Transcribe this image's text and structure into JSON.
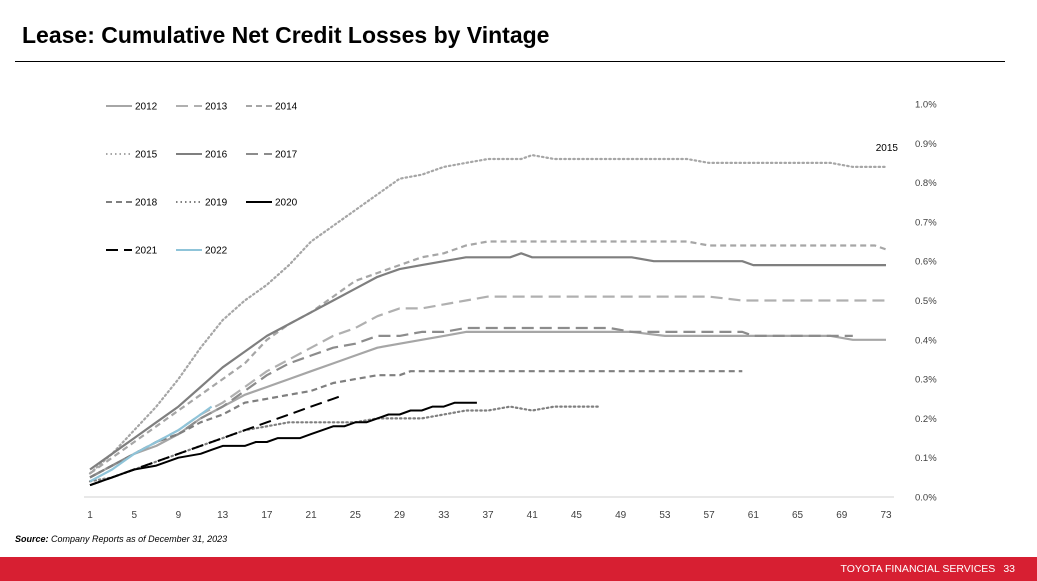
{
  "page": {
    "title": "Lease: Cumulative Net Credit Losses by Vintage",
    "source_label": "Source:",
    "source_text": "Company Reports as of December 31, 2023",
    "footer_company": "TOYOTA FINANCIAL SERVICES",
    "page_number": "33"
  },
  "chart_data": {
    "type": "line",
    "title": "Lease: Cumulative Net Credit Losses by Vintage",
    "xlabel": "",
    "ylabel": "",
    "x_ticks": [
      1,
      5,
      9,
      13,
      17,
      21,
      25,
      29,
      33,
      37,
      41,
      45,
      49,
      53,
      57,
      61,
      65,
      69,
      73
    ],
    "xlim": [
      1,
      73
    ],
    "y_ticks": [
      0.0,
      0.1,
      0.2,
      0.3,
      0.4,
      0.5,
      0.6,
      0.7,
      0.8,
      0.9,
      1.0
    ],
    "y_tick_labels": [
      "0.0%",
      "0.1%",
      "0.2%",
      "0.3%",
      "0.4%",
      "0.5%",
      "0.6%",
      "0.7%",
      "0.8%",
      "0.9%",
      "1.0%"
    ],
    "ylim": [
      0,
      1.0
    ],
    "y_axis_side": "right",
    "grid": false,
    "legend_position": "top-left",
    "annotations": [
      {
        "text": "2015",
        "x": 73,
        "y": 0.87
      }
    ],
    "series": [
      {
        "name": "2012",
        "color": "#a6a6a6",
        "dash": "solid",
        "x": [
          1,
          3,
          5,
          7,
          9,
          11,
          13,
          15,
          17,
          19,
          21,
          23,
          25,
          27,
          29,
          31,
          33,
          35,
          37,
          40,
          45,
          50,
          53,
          55,
          60,
          65,
          68,
          70,
          73
        ],
        "y": [
          0.05,
          0.08,
          0.11,
          0.13,
          0.16,
          0.2,
          0.23,
          0.26,
          0.28,
          0.3,
          0.32,
          0.34,
          0.36,
          0.38,
          0.39,
          0.4,
          0.41,
          0.42,
          0.42,
          0.42,
          0.42,
          0.42,
          0.41,
          0.41,
          0.41,
          0.41,
          0.41,
          0.4,
          0.4
        ]
      },
      {
        "name": "2013",
        "color": "#b0b0b0",
        "dash": "longdash",
        "x": [
          1,
          3,
          5,
          7,
          9,
          11,
          13,
          15,
          17,
          19,
          21,
          23,
          25,
          27,
          29,
          31,
          33,
          35,
          37,
          40,
          45,
          50,
          55,
          57,
          60,
          65,
          70,
          73
        ],
        "y": [
          0.05,
          0.08,
          0.11,
          0.14,
          0.17,
          0.21,
          0.24,
          0.28,
          0.32,
          0.35,
          0.38,
          0.41,
          0.43,
          0.46,
          0.48,
          0.48,
          0.49,
          0.5,
          0.51,
          0.51,
          0.51,
          0.51,
          0.51,
          0.51,
          0.5,
          0.5,
          0.5,
          0.5
        ]
      },
      {
        "name": "2014",
        "color": "#a6a6a6",
        "dash": "dash",
        "x": [
          1,
          3,
          5,
          7,
          9,
          11,
          13,
          15,
          17,
          19,
          21,
          23,
          25,
          27,
          29,
          31,
          33,
          35,
          37,
          40,
          45,
          50,
          55,
          57,
          60,
          65,
          70,
          72,
          73
        ],
        "y": [
          0.06,
          0.1,
          0.14,
          0.18,
          0.22,
          0.26,
          0.3,
          0.34,
          0.4,
          0.44,
          0.47,
          0.51,
          0.55,
          0.57,
          0.59,
          0.61,
          0.62,
          0.64,
          0.65,
          0.65,
          0.65,
          0.65,
          0.65,
          0.64,
          0.64,
          0.64,
          0.64,
          0.64,
          0.63
        ]
      },
      {
        "name": "2015",
        "color": "#a6a6a6",
        "dash": "dot",
        "x": [
          1,
          3,
          5,
          7,
          9,
          11,
          13,
          15,
          17,
          19,
          21,
          23,
          25,
          27,
          29,
          31,
          33,
          35,
          37,
          40,
          41,
          43,
          45,
          50,
          55,
          57,
          60,
          65,
          68,
          70,
          73
        ],
        "y": [
          0.06,
          0.11,
          0.17,
          0.23,
          0.3,
          0.38,
          0.45,
          0.5,
          0.54,
          0.59,
          0.65,
          0.69,
          0.73,
          0.77,
          0.81,
          0.82,
          0.84,
          0.85,
          0.86,
          0.86,
          0.87,
          0.86,
          0.86,
          0.86,
          0.86,
          0.85,
          0.85,
          0.85,
          0.85,
          0.84,
          0.84
        ]
      },
      {
        "name": "2016",
        "color": "#7f7f7f",
        "dash": "solid",
        "x": [
          1,
          3,
          5,
          7,
          9,
          11,
          13,
          15,
          17,
          19,
          21,
          23,
          25,
          27,
          29,
          31,
          33,
          35,
          37,
          39,
          40,
          41,
          45,
          50,
          52,
          55,
          60,
          61,
          65,
          70,
          73
        ],
        "y": [
          0.07,
          0.11,
          0.15,
          0.19,
          0.23,
          0.28,
          0.33,
          0.37,
          0.41,
          0.44,
          0.47,
          0.5,
          0.53,
          0.56,
          0.58,
          0.59,
          0.6,
          0.61,
          0.61,
          0.61,
          0.62,
          0.61,
          0.61,
          0.61,
          0.6,
          0.6,
          0.6,
          0.59,
          0.59,
          0.59,
          0.59
        ]
      },
      {
        "name": "2017",
        "color": "#8c8c8c",
        "dash": "longdash",
        "x": [
          1,
          3,
          5,
          7,
          9,
          11,
          13,
          15,
          17,
          19,
          21,
          23,
          25,
          27,
          29,
          31,
          33,
          35,
          37,
          39,
          41,
          45,
          48,
          50,
          55,
          60,
          61,
          65,
          70
        ],
        "y": [
          0.05,
          0.08,
          0.11,
          0.14,
          0.16,
          0.2,
          0.23,
          0.27,
          0.31,
          0.34,
          0.36,
          0.38,
          0.39,
          0.41,
          0.41,
          0.42,
          0.42,
          0.43,
          0.43,
          0.43,
          0.43,
          0.43,
          0.43,
          0.42,
          0.42,
          0.42,
          0.41,
          0.41,
          0.41
        ]
      },
      {
        "name": "2018",
        "color": "#7f7f7f",
        "dash": "dash",
        "x": [
          1,
          3,
          5,
          7,
          9,
          11,
          13,
          15,
          17,
          19,
          21,
          23,
          25,
          27,
          29,
          30,
          33,
          37,
          40,
          45,
          50,
          55,
          60
        ],
        "y": [
          0.05,
          0.08,
          0.11,
          0.14,
          0.16,
          0.19,
          0.21,
          0.24,
          0.25,
          0.26,
          0.27,
          0.29,
          0.3,
          0.31,
          0.31,
          0.32,
          0.32,
          0.32,
          0.32,
          0.32,
          0.32,
          0.32,
          0.32
        ]
      },
      {
        "name": "2019",
        "color": "#7f7f7f",
        "dash": "dot",
        "x": [
          1,
          3,
          5,
          7,
          9,
          11,
          13,
          15,
          17,
          19,
          21,
          23,
          25,
          27,
          29,
          31,
          33,
          35,
          37,
          39,
          41,
          43,
          45,
          47
        ],
        "y": [
          0.04,
          0.05,
          0.07,
          0.09,
          0.11,
          0.13,
          0.15,
          0.17,
          0.18,
          0.19,
          0.19,
          0.19,
          0.19,
          0.2,
          0.2,
          0.2,
          0.21,
          0.22,
          0.22,
          0.23,
          0.22,
          0.23,
          0.23,
          0.23
        ]
      },
      {
        "name": "2020",
        "color": "#000000",
        "dash": "solid",
        "x": [
          1,
          3,
          5,
          7,
          9,
          11,
          12,
          13,
          15,
          16,
          17,
          18,
          19,
          20,
          21,
          22,
          23,
          24,
          25,
          26,
          27,
          28,
          29,
          30,
          31,
          32,
          33,
          34,
          35,
          36
        ],
        "y": [
          0.03,
          0.05,
          0.07,
          0.08,
          0.1,
          0.11,
          0.12,
          0.13,
          0.13,
          0.14,
          0.14,
          0.15,
          0.15,
          0.15,
          0.16,
          0.17,
          0.18,
          0.18,
          0.19,
          0.19,
          0.2,
          0.21,
          0.21,
          0.22,
          0.22,
          0.23,
          0.23,
          0.24,
          0.24,
          0.24
        ]
      },
      {
        "name": "2021",
        "color": "#000000",
        "dash": "longdash",
        "x": [
          1,
          3,
          5,
          7,
          9,
          11,
          13,
          15,
          17,
          19,
          21,
          23,
          24
        ],
        "y": [
          0.03,
          0.05,
          0.07,
          0.09,
          0.11,
          0.13,
          0.15,
          0.17,
          0.19,
          0.21,
          0.23,
          0.25,
          0.26
        ]
      },
      {
        "name": "2022",
        "color": "#8fc4d9",
        "dash": "solid",
        "x": [
          1,
          3,
          5,
          7,
          9,
          11,
          12
        ],
        "y": [
          0.04,
          0.07,
          0.11,
          0.14,
          0.17,
          0.21,
          0.23
        ]
      }
    ]
  }
}
